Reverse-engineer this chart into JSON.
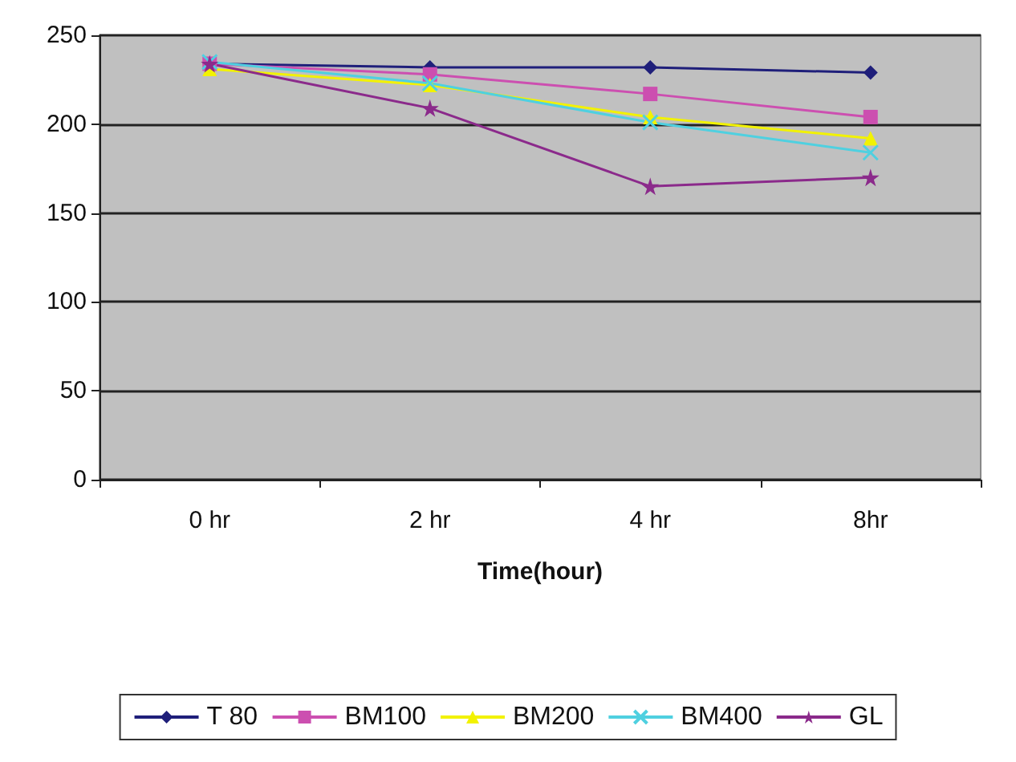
{
  "chart_data": {
    "type": "line",
    "xlabel": "Time(hour)",
    "categories": [
      "0 hr",
      "2 hr",
      "4 hr",
      "8hr"
    ],
    "series": [
      {
        "name": "T 80",
        "color": "#1f1f7a",
        "marker": "diamond",
        "values": [
          234,
          232,
          232,
          229
        ]
      },
      {
        "name": "BM100",
        "color": "#cc4fb0",
        "marker": "square",
        "values": [
          234,
          228,
          217,
          204
        ]
      },
      {
        "name": "BM200",
        "color": "#f2f200",
        "marker": "triangle",
        "values": [
          231,
          222,
          204,
          192
        ]
      },
      {
        "name": "BM400",
        "color": "#4fd0e0",
        "marker": "cross",
        "values": [
          235,
          223,
          201,
          184
        ]
      },
      {
        "name": "GL",
        "color": "#8b2a8b",
        "marker": "star",
        "values": [
          234,
          209,
          165,
          170
        ]
      }
    ],
    "ylim": [
      0,
      250
    ],
    "yticks": [
      0,
      50,
      100,
      150,
      200,
      250
    ],
    "grid": "y",
    "legend": "bottom"
  }
}
